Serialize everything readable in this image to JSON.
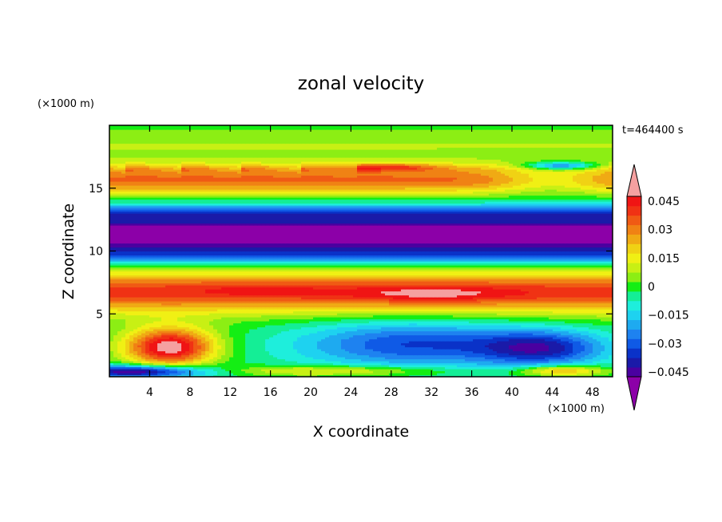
{
  "chart_data": {
    "type": "heatmap",
    "title": "zonal velocity",
    "xlabel": "X coordinate",
    "ylabel": "Z coordinate",
    "x_unit": "(×1000 m)",
    "y_unit": "(×1000 m)",
    "time_label": "t=464400 s",
    "xlim": [
      0,
      50
    ],
    "ylim": [
      0,
      20
    ],
    "x_ticks": [
      4,
      8,
      12,
      16,
      20,
      24,
      28,
      32,
      36,
      40,
      44,
      48
    ],
    "y_ticks": [
      5,
      10,
      15
    ],
    "colorbar": {
      "levels": [
        -0.05,
        -0.045,
        -0.04,
        -0.035,
        -0.03,
        -0.025,
        -0.02,
        -0.015,
        -0.01,
        -0.005,
        0,
        0.005,
        0.01,
        0.015,
        0.02,
        0.025,
        0.03,
        0.035,
        0.04,
        0.045,
        0.05
      ],
      "tick_labels": [
        "0.045",
        "0.03",
        "0.015",
        "0",
        "−0.015",
        "−0.03",
        "−0.045"
      ],
      "colors": [
        "#8c00a8",
        "#4a00a0",
        "#1a1aa8",
        "#0a32c8",
        "#0f5ae6",
        "#1e82f0",
        "#1eaaf0",
        "#1ed2f0",
        "#1eeedc",
        "#14ee96",
        "#14ee14",
        "#8cee14",
        "#c8f014",
        "#f0f014",
        "#f0d214",
        "#f0aa14",
        "#f08214",
        "#f05a14",
        "#f03214",
        "#f01414",
        "#f5a0a0"
      ]
    }
  }
}
